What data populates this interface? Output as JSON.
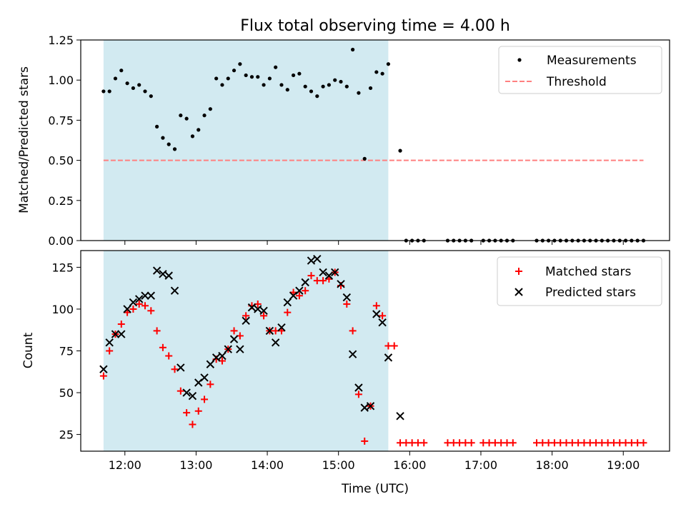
{
  "title": "Flux total observing time = 4.00 h",
  "chart_data": [
    {
      "type": "scatter",
      "title": "Flux total observing time = 4.00 h",
      "ylabel": "Matched/Predicted stars",
      "xlabel": "",
      "ylim": [
        0,
        1.25
      ],
      "yticks": [
        "0.00",
        "0.25",
        "0.50",
        "0.75",
        "1.00",
        "1.25"
      ],
      "xlim_hours": [
        11.38,
        19.65
      ],
      "shaded_interval": {
        "start": "11:42",
        "end": "15:42",
        "color": "#add8e6"
      },
      "legend_position": "top-right",
      "series": [
        {
          "name": "Measurements",
          "color": "#000000",
          "marker": "dot",
          "x": [
            "11:42",
            "11:47",
            "11:52",
            "11:57",
            "12:02",
            "12:07",
            "12:12",
            "12:17",
            "12:22",
            "12:27",
            "12:32",
            "12:37",
            "12:42",
            "12:47",
            "12:52",
            "12:57",
            "13:02",
            "13:07",
            "13:12",
            "13:17",
            "13:22",
            "13:27",
            "13:32",
            "13:37",
            "13:42",
            "13:47",
            "13:52",
            "13:57",
            "14:02",
            "14:07",
            "14:12",
            "14:17",
            "14:22",
            "14:27",
            "14:32",
            "14:37",
            "14:42",
            "14:47",
            "14:52",
            "14:57",
            "15:02",
            "15:07",
            "15:12",
            "15:17",
            "15:22",
            "15:27",
            "15:32",
            "15:37",
            "15:42",
            "15:52",
            "15:57",
            "16:02",
            "16:07",
            "16:12",
            "16:32",
            "16:37",
            "16:42",
            "16:47",
            "16:52",
            "17:02",
            "17:07",
            "17:12",
            "17:17",
            "17:22",
            "17:27",
            "17:47",
            "17:52",
            "17:57",
            "18:02",
            "18:07",
            "18:12",
            "18:17",
            "18:22",
            "18:27",
            "18:32",
            "18:37",
            "18:42",
            "18:47",
            "18:52",
            "18:57",
            "19:02",
            "19:07",
            "19:12",
            "19:17"
          ],
          "y": [
            0.93,
            0.93,
            1.01,
            1.06,
            0.98,
            0.95,
            0.97,
            0.93,
            0.9,
            0.71,
            0.64,
            0.6,
            0.57,
            0.78,
            0.76,
            0.65,
            0.69,
            0.78,
            0.82,
            1.01,
            0.97,
            1.01,
            1.06,
            1.1,
            1.03,
            1.02,
            1.02,
            0.97,
            1.01,
            1.08,
            0.97,
            0.94,
            1.03,
            1.04,
            0.96,
            0.93,
            0.9,
            0.96,
            0.97,
            1.0,
            0.99,
            0.96,
            1.19,
            0.92,
            0.51,
            0.95,
            1.05,
            1.04,
            1.1,
            0.56,
            0,
            0,
            0,
            0,
            0,
            0,
            0,
            0,
            0,
            0,
            0,
            0,
            0,
            0,
            0,
            0,
            0,
            0,
            0,
            0,
            0,
            0,
            0,
            0,
            0,
            0,
            0,
            0,
            0,
            0,
            0,
            0,
            0,
            0
          ]
        },
        {
          "name": "Threshold",
          "color": "#ff8080",
          "style": "dashed",
          "x": [
            "11:42",
            "19:17"
          ],
          "y": [
            0.5,
            0.5
          ]
        }
      ]
    },
    {
      "type": "scatter",
      "xlabel": "Time (UTC)",
      "ylabel": "Count",
      "ylim": [
        15,
        135
      ],
      "yticks": [
        "25",
        "50",
        "75",
        "100",
        "125"
      ],
      "xlim_hours": [
        11.38,
        19.65
      ],
      "xticks": [
        "12:00",
        "13:00",
        "14:00",
        "15:00",
        "16:00",
        "17:00",
        "18:00",
        "19:00"
      ],
      "shaded_interval": {
        "start": "11:42",
        "end": "15:42",
        "color": "#add8e6"
      },
      "legend_position": "top-right",
      "series": [
        {
          "name": "Matched stars",
          "color": "#ff0000",
          "marker": "plus",
          "x": [
            "11:42",
            "11:47",
            "11:52",
            "11:57",
            "12:02",
            "12:07",
            "12:12",
            "12:17",
            "12:22",
            "12:27",
            "12:32",
            "12:37",
            "12:42",
            "12:47",
            "12:52",
            "12:57",
            "13:02",
            "13:07",
            "13:12",
            "13:17",
            "13:22",
            "13:27",
            "13:32",
            "13:37",
            "13:42",
            "13:47",
            "13:52",
            "13:57",
            "14:02",
            "14:07",
            "14:12",
            "14:17",
            "14:22",
            "14:27",
            "14:32",
            "14:37",
            "14:42",
            "14:47",
            "14:52",
            "14:57",
            "15:02",
            "15:07",
            "15:12",
            "15:17",
            "15:22",
            "15:27",
            "15:32",
            "15:37",
            "15:42",
            "15:47",
            "15:52",
            "15:57",
            "16:02",
            "16:07",
            "16:12",
            "16:32",
            "16:37",
            "16:42",
            "16:47",
            "16:52",
            "17:02",
            "17:07",
            "17:12",
            "17:17",
            "17:22",
            "17:27",
            "17:47",
            "17:52",
            "17:57",
            "18:02",
            "18:07",
            "18:12",
            "18:17",
            "18:22",
            "18:27",
            "18:32",
            "18:37",
            "18:42",
            "18:47",
            "18:52",
            "18:57",
            "19:02",
            "19:07",
            "19:12",
            "19:17"
          ],
          "y": [
            60,
            75,
            85,
            91,
            98,
            100,
            103,
            102,
            99,
            87,
            77,
            72,
            64,
            51,
            38,
            31,
            39,
            46,
            55,
            70,
            69,
            76,
            87,
            84,
            96,
            102,
            103,
            96,
            87,
            87,
            87,
            98,
            110,
            108,
            111,
            120,
            117,
            117,
            118,
            122,
            114,
            103,
            87,
            49,
            21,
            42,
            102,
            96,
            78,
            78,
            20,
            20,
            20,
            20,
            20,
            20,
            20,
            20,
            20,
            20,
            20,
            20,
            20,
            20,
            20,
            20,
            20,
            20,
            20,
            20,
            20,
            20,
            20,
            20,
            20,
            20,
            20,
            20,
            20,
            20,
            20,
            20,
            20,
            20,
            20
          ]
        },
        {
          "name": "Predicted stars",
          "color": "#000000",
          "marker": "x",
          "x": [
            "11:42",
            "11:47",
            "11:52",
            "11:57",
            "12:02",
            "12:07",
            "12:12",
            "12:17",
            "12:22",
            "12:27",
            "12:32",
            "12:37",
            "12:42",
            "12:47",
            "12:52",
            "12:57",
            "13:02",
            "13:07",
            "13:12",
            "13:17",
            "13:22",
            "13:27",
            "13:32",
            "13:37",
            "13:42",
            "13:47",
            "13:52",
            "13:57",
            "14:02",
            "14:07",
            "14:12",
            "14:17",
            "14:22",
            "14:27",
            "14:32",
            "14:37",
            "14:42",
            "14:47",
            "14:52",
            "14:57",
            "15:02",
            "15:07",
            "15:12",
            "15:17",
            "15:22",
            "15:27",
            "15:32",
            "15:37",
            "15:42",
            "15:52"
          ],
          "y": [
            64,
            80,
            85,
            85,
            100,
            104,
            106,
            108,
            108,
            123,
            121,
            120,
            111,
            65,
            50,
            48,
            56,
            59,
            67,
            71,
            72,
            76,
            82,
            76,
            93,
            101,
            100,
            99,
            87,
            80,
            89,
            104,
            108,
            111,
            116,
            129,
            130,
            122,
            120,
            122,
            115,
            107,
            73,
            53,
            41,
            42,
            97,
            92,
            71,
            36
          ]
        }
      ]
    }
  ]
}
